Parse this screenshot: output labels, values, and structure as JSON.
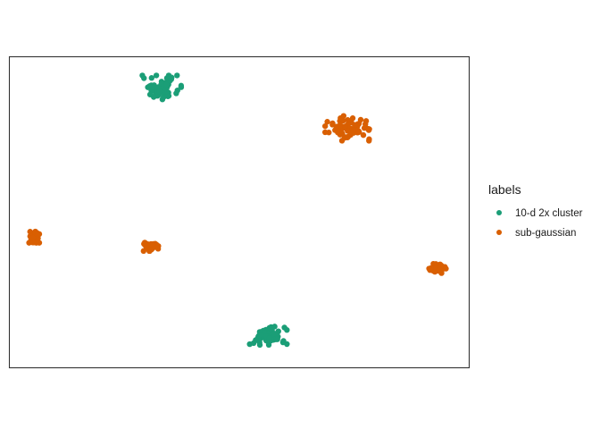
{
  "chart_data": {
    "type": "scatter",
    "title": "",
    "xlabel": "",
    "ylabel": "",
    "xlim": [
      0,
      100
    ],
    "ylim": [
      0,
      100
    ],
    "grid": false,
    "axes_ticks": false,
    "legend": {
      "title": "labels",
      "position": "right",
      "items": [
        {
          "label": "10-d 2x cluster",
          "color": "#1b9e77"
        },
        {
          "label": "sub-gaussian",
          "color": "#d95f02"
        }
      ]
    },
    "series": [
      {
        "name": "10-d 2x cluster",
        "color": "#1b9e77",
        "clusters": [
          {
            "center": [
              33,
              90
            ],
            "spread": [
              3.6,
              3.3
            ],
            "n": 70
          },
          {
            "center": [
              56,
              10
            ],
            "spread": [
              3.6,
              2.9
            ],
            "n": 70
          }
        ]
      },
      {
        "name": "sub-gaussian",
        "color": "#d95f02",
        "clusters": [
          {
            "center": [
              74,
              77
            ],
            "spread": [
              4.4,
              3.3
            ],
            "n": 70
          },
          {
            "center": [
              5.5,
              42
            ],
            "spread": [
              1.0,
              1.5
            ],
            "n": 40
          },
          {
            "center": [
              31,
              39
            ],
            "spread": [
              1.5,
              1.2
            ],
            "n": 40
          },
          {
            "center": [
              93,
              32
            ],
            "spread": [
              1.6,
              1.3
            ],
            "n": 40
          }
        ]
      }
    ]
  }
}
